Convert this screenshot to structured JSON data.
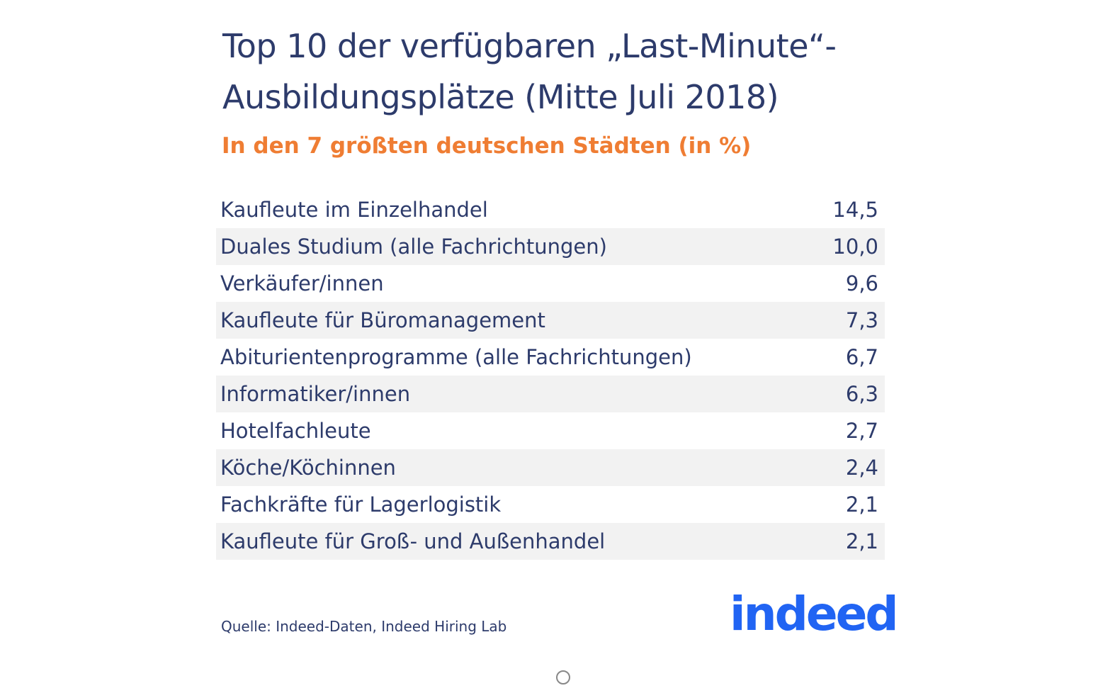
{
  "header": {
    "title": [
      "Top 10 der verfügbaren „Last-Minute“-",
      "Ausbildungsplätze (Mitte Juli 2018)"
    ],
    "subtitle": "In den 7 größten deutschen Städten (in %)"
  },
  "table": {
    "rows": [
      [
        "Kaufleute im Einzelhandel",
        "14,5"
      ],
      [
        "Duales Studium (alle Fachrichtungen)",
        "10,0"
      ],
      [
        "Verkäufer/innen",
        "9,6"
      ],
      [
        "Kaufleute für Büromanagement",
        "7,3"
      ],
      [
        "Abiturientenprogramme (alle Fachrichtungen)",
        "6,7"
      ],
      [
        "Informatiker/innen",
        "6,3"
      ],
      [
        "Hotelfachleute",
        "2,7"
      ],
      [
        "Köche/Köchinnen",
        "2,4"
      ],
      [
        "Fachkräfte für Lagerlogistik",
        "2,1"
      ],
      [
        "Kaufleute für Groß- und Außenhandel",
        "2,1"
      ]
    ]
  },
  "footer": {
    "source": "Quelle: Indeed-Daten, Indeed Hiring Lab",
    "logo": "indeed"
  }
}
